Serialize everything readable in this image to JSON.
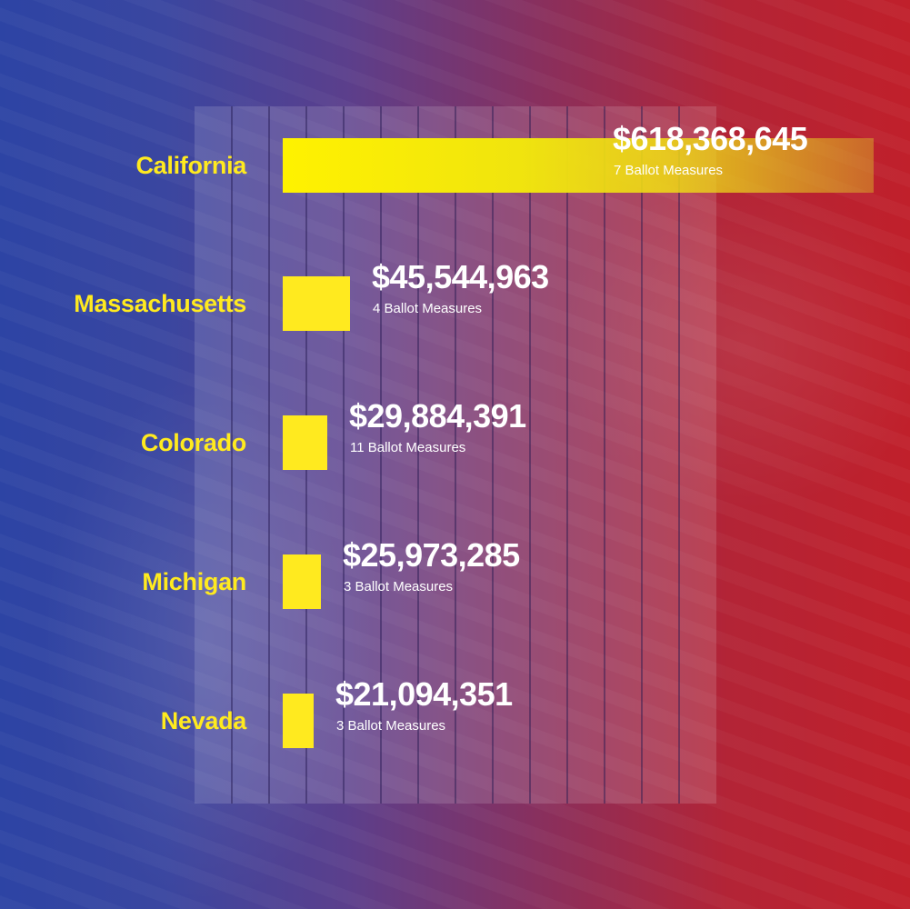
{
  "chart_data": {
    "type": "bar",
    "orientation": "horizontal",
    "title": "",
    "xlabel": "",
    "ylabel": "",
    "xlim": [
      0,
      618368645
    ],
    "grid": true,
    "legend": "none",
    "colors": {
      "bar": "#ffea1f",
      "label": "#ffea1f",
      "value_text": "#ffffff",
      "background_left": "#2d44a4",
      "background_right": "#c0202b"
    },
    "categories": [
      "California",
      "Massachusetts",
      "Colorado",
      "Michigan",
      "Nevada"
    ],
    "values": [
      618368645,
      45544963,
      29884391,
      25973285,
      21094351
    ],
    "value_labels": [
      "$618,368,645",
      "$45,544,963",
      "$29,884,391",
      "$25,973,285",
      "$21,094,351"
    ],
    "measure_labels": [
      "7 Ballot Measures",
      "4 Ballot Measures",
      "11 Ballot Measures",
      "3 Ballot Measures",
      "3 Ballot Measures"
    ]
  }
}
